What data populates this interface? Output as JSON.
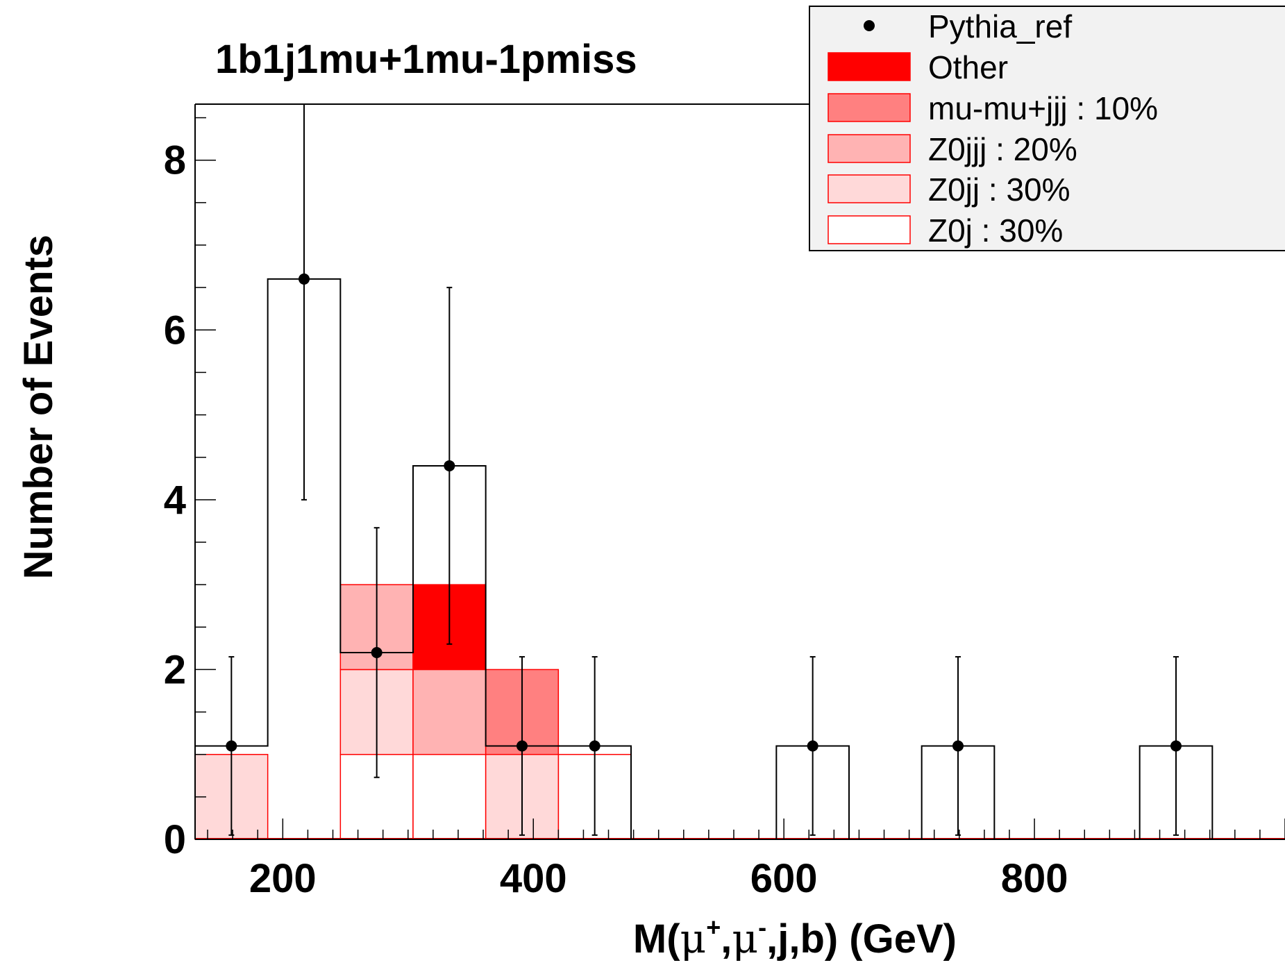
{
  "chart_data": {
    "type": "bar",
    "title": "1b1j1mu+1mu-1pmiss",
    "xlabel": "M(μ+,μ-,j,b) (GeV)",
    "xlabel_parts": [
      "M(",
      "μ",
      "+",
      ",",
      "μ",
      "-",
      ",j,b) (GeV)"
    ],
    "ylabel": "Number of Events",
    "xlim": [
      130,
      1000
    ],
    "ylim": [
      0,
      8.66
    ],
    "x_ticks": [
      200,
      400,
      600,
      800
    ],
    "y_ticks": [
      0,
      2,
      4,
      6,
      8
    ],
    "bin_edges": [
      130,
      188,
      246,
      304,
      362,
      420,
      478,
      536,
      594,
      652,
      710,
      768,
      826,
      884,
      942,
      1000
    ],
    "stack": [
      {
        "name": "Z0j : 30%",
        "fill": "#ffffff",
        "values": [
          0,
          0,
          1,
          1,
          0,
          1,
          0,
          0,
          0,
          0,
          0,
          0,
          0,
          0,
          0
        ]
      },
      {
        "name": "Z0jj : 30%",
        "fill": "#ffd9d9",
        "values": [
          1,
          0,
          1,
          0,
          1,
          0,
          0,
          0,
          0,
          0,
          0,
          0,
          0,
          0,
          0
        ]
      },
      {
        "name": "Z0jjj : 20%",
        "fill": "#ffb3b3",
        "values": [
          0,
          0,
          1,
          1,
          0,
          0,
          0,
          0,
          0,
          0,
          0,
          0,
          0,
          0,
          0
        ]
      },
      {
        "name": "mu-mu+jjj : 10%",
        "fill": "#ff8080",
        "values": [
          0,
          0,
          0,
          0,
          1,
          0,
          0,
          0,
          0,
          0,
          0,
          0,
          0,
          0,
          0
        ]
      },
      {
        "name": "Other",
        "fill": "#ff0000",
        "values": [
          0,
          0,
          0,
          1,
          0,
          0,
          0,
          0,
          0,
          0,
          0,
          0,
          0,
          0,
          0
        ]
      }
    ],
    "reference": {
      "name": "Pythia_ref",
      "values": [
        1.1,
        6.6,
        2.2,
        4.4,
        1.1,
        1.1,
        0,
        0,
        1.1,
        0,
        1.1,
        0,
        0,
        1.1,
        0
      ],
      "err_low": [
        1.05,
        2.6,
        1.47,
        2.1,
        1.05,
        1.05,
        0,
        0,
        1.05,
        0,
        1.05,
        0,
        0,
        1.05,
        0
      ],
      "err_high": [
        1.05,
        2.06,
        1.47,
        2.1,
        1.05,
        1.05,
        0,
        0,
        1.05,
        0,
        1.05,
        0,
        0,
        1.05,
        0
      ]
    },
    "legend": {
      "placement": "top-right",
      "entries": [
        "Pythia_ref",
        "Other",
        "mu-mu+jjj : 10%",
        "Z0jjj : 20%",
        "Z0jj : 30%",
        "Z0j : 30%"
      ]
    }
  },
  "colors": {
    "stack_outline": "#ff0000",
    "reference": "#000000",
    "legend_bg": "#f2f2f2"
  }
}
